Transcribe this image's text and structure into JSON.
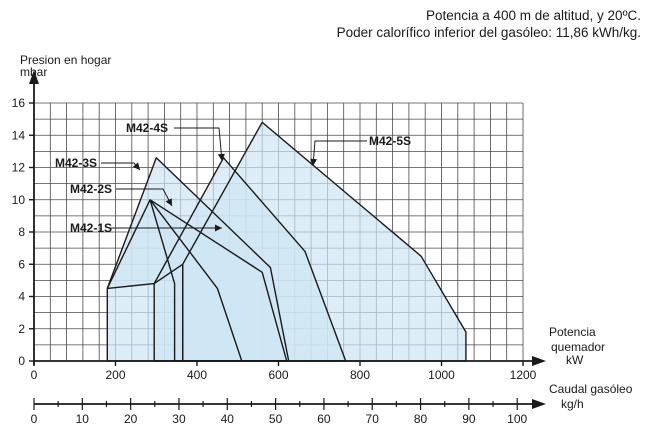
{
  "notes": {
    "line1": "Potencia a 400 m de altitud, y 20ºC.",
    "line2": "Poder calorífico inferior del gasóleo: 11,86 kWh/kg."
  },
  "chart_data": {
    "type": "area",
    "y_axis": {
      "label_line1": "Presion en hogar",
      "label_line2": "mbar",
      "range": [
        0,
        16
      ],
      "ticks": [
        0,
        2,
        4,
        6,
        8,
        10,
        12,
        14,
        16
      ],
      "tick_labels": [
        "0",
        "2",
        "4",
        "6",
        "8",
        "10",
        "12",
        "14",
        "16"
      ]
    },
    "x_axis": {
      "label_line1": "Potencia",
      "label_line2": "quemador",
      "label_line3": "kW",
      "range": [
        0,
        1200
      ],
      "ticks": [
        0,
        200,
        400,
        600,
        800,
        1000,
        1200
      ],
      "tick_labels": [
        "0",
        "200",
        "400",
        "600",
        "800",
        "1000",
        "1200"
      ]
    },
    "x2_axis": {
      "label_line1": "Caudal gasóleo",
      "label_line2": "kg/h",
      "range": [
        0,
        101.2
      ],
      "ticks": [
        0,
        10,
        20,
        30,
        40,
        50,
        60,
        70,
        80,
        90,
        100
      ],
      "tick_labels": [
        "0",
        "10",
        "20",
        "30",
        "40",
        "50",
        "60",
        "70",
        "80",
        "90",
        "100"
      ]
    },
    "grid": true,
    "colors": {
      "fill": "#cfe6f3",
      "line": "#1a1a1a",
      "grid": "#4a4a4a"
    },
    "series": [
      {
        "name": "M42-1S",
        "points": [
          [
            180,
            4.5
          ],
          [
            285,
            10.0
          ],
          [
            450,
            4.5
          ],
          [
            510,
            0
          ],
          [
            295,
            0
          ],
          [
            295,
            4.8
          ],
          [
            180,
            4.5
          ]
        ]
      },
      {
        "name": "M42-2S",
        "points": [
          [
            285,
            10.0
          ],
          [
            560,
            5.5
          ],
          [
            620,
            0
          ],
          [
            345,
            0
          ],
          [
            345,
            4.8
          ],
          [
            285,
            10.0
          ]
        ]
      },
      {
        "name": "M42-3S",
        "points": [
          [
            180,
            4.5
          ],
          [
            300,
            12.6
          ],
          [
            580,
            5.8
          ],
          [
            625,
            0
          ],
          [
            180,
            0
          ],
          [
            180,
            4.5
          ]
        ]
      },
      {
        "name": "M42-4S",
        "points": [
          [
            295,
            4.8
          ],
          [
            465,
            12.6
          ],
          [
            665,
            6.8
          ],
          [
            765,
            0
          ],
          [
            365,
            0
          ],
          [
            365,
            6.0
          ],
          [
            295,
            4.8
          ]
        ]
      },
      {
        "name": "M42-5S",
        "points": [
          [
            365,
            6.0
          ],
          [
            560,
            14.8
          ],
          [
            950,
            6.5
          ],
          [
            1060,
            1.8
          ],
          [
            1060,
            0
          ],
          [
            365,
            0
          ],
          [
            365,
            6.0
          ]
        ]
      }
    ]
  }
}
